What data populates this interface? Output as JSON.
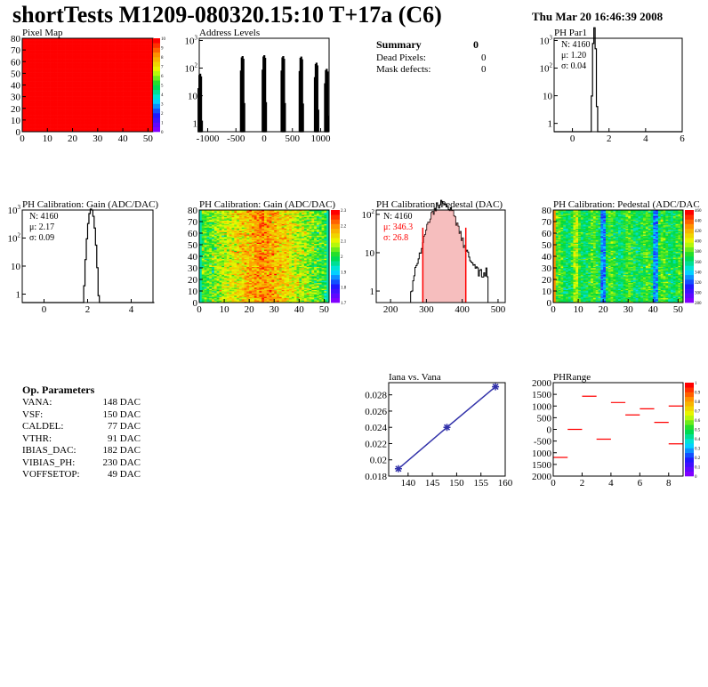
{
  "header": {
    "title": "shortTests M1209-080320.15:10 T+17a (C6)",
    "date": "Thu Mar 20 16:46:39 2008"
  },
  "summary": {
    "heading": "Summary",
    "value": "0",
    "rows": [
      {
        "label": "Dead Pixels:",
        "value": "0"
      },
      {
        "label": "Mask defects:",
        "value": "0"
      }
    ]
  },
  "op_params": {
    "heading": "Op. Parameters",
    "rows": [
      {
        "label": "VANA:",
        "value": "148 DAC"
      },
      {
        "label": "VSF:",
        "value": "150 DAC"
      },
      {
        "label": "CALDEL:",
        "value": "77 DAC"
      },
      {
        "label": "VTHR:",
        "value": "91 DAC"
      },
      {
        "label": "IBIAS_DAC:",
        "value": "182 DAC"
      },
      {
        "label": "VIBIAS_PH:",
        "value": "230 DAC"
      },
      {
        "label": "VOFFSETOP:",
        "value": "49 DAC"
      }
    ]
  },
  "chart_data": [
    {
      "id": "pixelmap",
      "type": "heatmap",
      "title": "Pixel Map",
      "xlim": [
        0,
        52
      ],
      "ylim": [
        0,
        80
      ],
      "xticks": [
        "0",
        "10",
        "20",
        "30",
        "40",
        "50"
      ],
      "yticks": [
        "0",
        "10",
        "20",
        "30",
        "40",
        "50",
        "60",
        "70",
        "80"
      ],
      "zlim": [
        0,
        10
      ],
      "zticks": [
        "0",
        "1",
        "2",
        "3",
        "4",
        "5",
        "6",
        "7",
        "8",
        "9",
        "10"
      ],
      "uniform_value": 10
    },
    {
      "id": "address",
      "type": "bar",
      "title": "Address Levels",
      "xlim": [
        -1150,
        1150
      ],
      "ylog": [
        0.5,
        1200
      ],
      "xticks": [
        "-1000",
        "-500",
        "0",
        "500",
        "1000"
      ],
      "yticks": [
        "1",
        "10",
        "10^2",
        "10^3"
      ],
      "peaks": [
        {
          "x": -1140,
          "h": 60
        },
        {
          "x": -390,
          "h": 260
        },
        {
          "x": -5,
          "h": 280
        },
        {
          "x": 330,
          "h": 260
        },
        {
          "x": 650,
          "h": 250
        },
        {
          "x": 920,
          "h": 150
        },
        {
          "x": 1100,
          "h": 90
        }
      ]
    },
    {
      "id": "phpar1",
      "type": "bar",
      "title": "PH Par1",
      "xlim": [
        -1,
        6
      ],
      "ylog": [
        0.5,
        1200
      ],
      "xticks": [
        "0",
        "2",
        "4",
        "6"
      ],
      "yticks": [
        "1",
        "10",
        "10^2",
        "10^3"
      ],
      "stats": {
        "n": "N: 4160",
        "mean": "μ: 1.20",
        "sigma": "σ: 0.04"
      },
      "mu": 1.2,
      "sd": 0.04,
      "N": 4160
    },
    {
      "id": "gainhist",
      "type": "bar",
      "title": "PH Calibration: Gain (ADC/DAC)",
      "xlim": [
        -1,
        5
      ],
      "ylog": [
        0.5,
        1000
      ],
      "xticks": [
        "0",
        "2",
        "4"
      ],
      "yticks": [
        "1",
        "10",
        "10^2",
        "10^3"
      ],
      "stats": {
        "n": "N: 4160",
        "mean": "μ: 2.17",
        "sigma": "σ: 0.09"
      },
      "mu": 2.17,
      "sd": 0.09,
      "N": 4160
    },
    {
      "id": "gainmap",
      "type": "heatmap",
      "title": "PH Calibration: Gain (ADC/DAC)",
      "xlim": [
        0,
        52
      ],
      "ylim": [
        0,
        80
      ],
      "xticks": [
        "0",
        "10",
        "20",
        "30",
        "40",
        "50"
      ],
      "yticks": [
        "0",
        "10",
        "20",
        "30",
        "40",
        "50",
        "60",
        "70",
        "80"
      ],
      "zticks": [
        "1.7",
        "1.8",
        "1.9",
        "2",
        "2.1",
        "2.2",
        "2.3"
      ]
    },
    {
      "id": "pedhist",
      "type": "bar",
      "title": "PH Calibration: Pedestal (DAC)",
      "xlim": [
        160,
        520
      ],
      "ylog": [
        0.5,
        130
      ],
      "xticks": [
        "200",
        "300",
        "400",
        "500"
      ],
      "yticks": [
        "1",
        "10",
        "10^2"
      ],
      "stats": {
        "n": "N: 4160",
        "mean": "μ: 346.3",
        "sigma": "σ: 26.8"
      },
      "mu": 346.3,
      "sd": 26.8,
      "N": 4160,
      "cut_lines": [
        290,
        410
      ]
    },
    {
      "id": "pedmap",
      "type": "heatmap",
      "title": "PH Calibration: Pedestal (ADC/DAC",
      "xlim": [
        0,
        52
      ],
      "ylim": [
        0,
        80
      ],
      "xticks": [
        "0",
        "10",
        "20",
        "30",
        "40",
        "50"
      ],
      "yticks": [
        "0",
        "10",
        "20",
        "30",
        "40",
        "50",
        "60",
        "70",
        "80"
      ],
      "zticks": [
        "280",
        "300",
        "320",
        "340",
        "360",
        "380",
        "400",
        "420",
        "440",
        "460"
      ]
    },
    {
      "id": "iana",
      "type": "line",
      "title": "Iana vs. Vana",
      "xlim": [
        136,
        160
      ],
      "ylim": [
        0.018,
        0.0295
      ],
      "xticks": [
        "140",
        "145",
        "150",
        "155",
        "160"
      ],
      "yticks": [
        "0.018",
        "0.02",
        "0.022",
        "0.024",
        "0.026",
        "0.028"
      ],
      "x": [
        138,
        148,
        158
      ],
      "y": [
        0.0189,
        0.024,
        0.029
      ],
      "color": "#3333aa"
    },
    {
      "id": "phrange",
      "type": "scatter",
      "title": "PHRange",
      "xlim": [
        0,
        9
      ],
      "ylim": [
        -2000,
        2000
      ],
      "xticks": [
        "0",
        "2",
        "4",
        "6",
        "8"
      ],
      "yticks": [
        "2000",
        "1500",
        "1000",
        "500",
        "0",
        "-500",
        "1000",
        "1500",
        "2000"
      ],
      "zticks": [
        "0",
        "0.1",
        "0.2",
        "0.3",
        "0.4",
        "0.5",
        "0.6",
        "0.7",
        "0.8",
        "0.9",
        "1"
      ],
      "segments": [
        {
          "bin": 0,
          "y": -1200
        },
        {
          "bin": 1,
          "y": 0
        },
        {
          "bin": 2,
          "y": 1420
        },
        {
          "bin": 3,
          "y": -420
        },
        {
          "bin": 4,
          "y": 1150
        },
        {
          "bin": 5,
          "y": 620
        },
        {
          "bin": 6,
          "y": 880
        },
        {
          "bin": 7,
          "y": 300
        },
        {
          "bin": 8,
          "y": 1000
        },
        {
          "bin": 8,
          "y": -620
        }
      ],
      "color": "#ff0000"
    }
  ]
}
